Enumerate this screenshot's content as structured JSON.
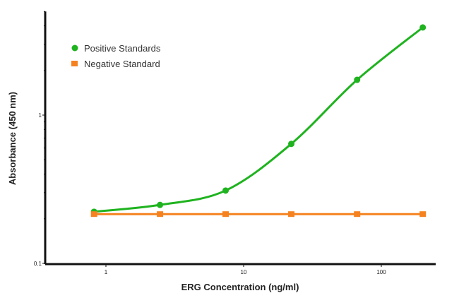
{
  "chart_data": {
    "type": "line",
    "title": "",
    "xlabel": "ERG Concentration (ng/ml)",
    "ylabel": "Absorbance (450 nm)",
    "xscale": "log",
    "yscale": "log",
    "xlim": [
      0.37,
      240
    ],
    "ylim": [
      0.1,
      5
    ],
    "xticks": [
      {
        "value": 1,
        "label": "1"
      },
      {
        "value": 10,
        "label": "10"
      },
      {
        "value": 100,
        "label": "100"
      }
    ],
    "yticks": [
      {
        "value": 0.1,
        "label": "0.1"
      },
      {
        "value": 1,
        "label": "1"
      }
    ],
    "grid": false,
    "legend_position": "top-left",
    "series": [
      {
        "name": "Positive Standards",
        "color": "#1fb31f",
        "marker": "circle",
        "fit": "smooth curve",
        "x": [
          0.82,
          2.47,
          7.4,
          22.2,
          66.7,
          200
        ],
        "y": [
          0.223,
          0.248,
          0.31,
          0.64,
          1.73,
          3.9
        ]
      },
      {
        "name": "Negative Standard",
        "color": "#f5821f",
        "marker": "square",
        "fit": "straight line",
        "x": [
          0.82,
          2.47,
          7.4,
          22.2,
          66.7,
          200
        ],
        "y": [
          0.215,
          0.215,
          0.215,
          0.215,
          0.215,
          0.215
        ]
      }
    ]
  }
}
